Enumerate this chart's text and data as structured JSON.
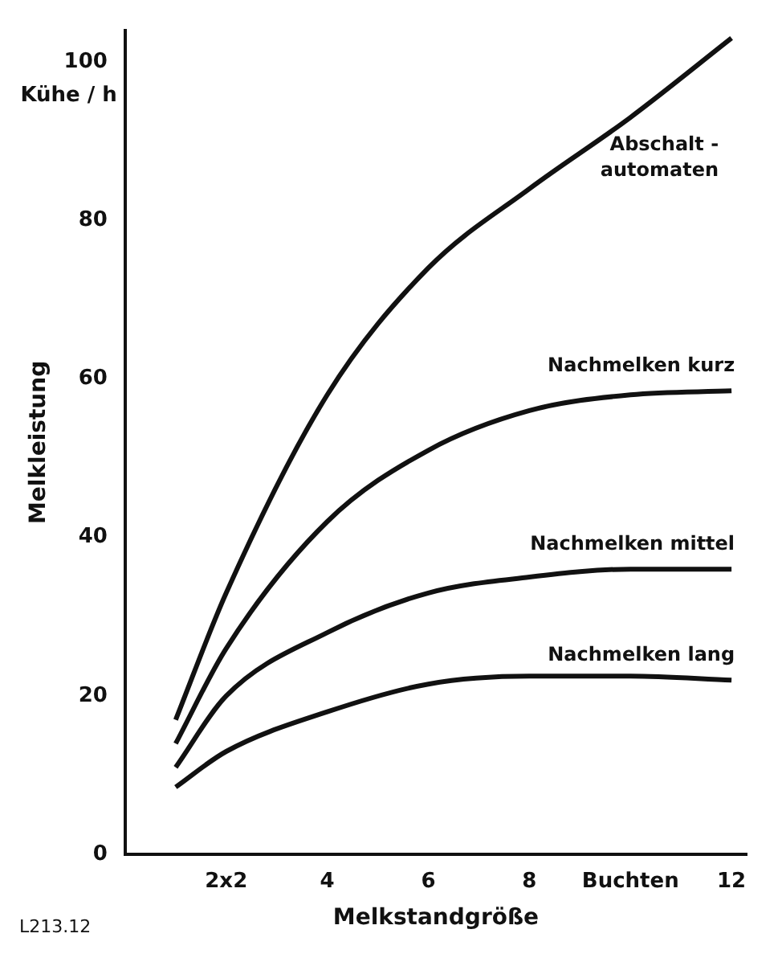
{
  "chart_data": {
    "type": "line",
    "xlabel": "Melkstandgröße",
    "ylabel": "Melkleistung",
    "annotations": [
      "Kühe / h",
      "L213.12"
    ],
    "x": [
      1,
      2,
      4,
      6,
      8,
      10,
      12
    ],
    "series": [
      {
        "name": "Abschalt - automaten",
        "color": "#111111",
        "values": [
          17,
          33,
          58,
          74,
          84,
          93,
          103
        ]
      },
      {
        "name": "Nachmelken kurz",
        "color": "#111111",
        "values": [
          14,
          26,
          42,
          51,
          56,
          58,
          58.5
        ]
      },
      {
        "name": "Nachmelken mittel",
        "color": "#111111",
        "values": [
          11,
          20,
          28,
          33,
          35,
          36,
          36
        ]
      },
      {
        "name": "Nachmelken lang",
        "color": "#111111",
        "values": [
          8.5,
          13,
          18,
          21.5,
          22.5,
          22.5,
          22
        ]
      }
    ],
    "xlim": [
      0,
      12.3
    ],
    "xticks": [
      {
        "value": 2,
        "label": "2x2"
      },
      4,
      6,
      8,
      {
        "value": 10,
        "label": "Buchten"
      },
      12
    ],
    "ylim": [
      0,
      104
    ],
    "yticks": [
      0,
      20,
      40,
      60,
      80,
      100
    ],
    "grid": false,
    "legend": false,
    "marker": "none",
    "line_style": "solid"
  }
}
